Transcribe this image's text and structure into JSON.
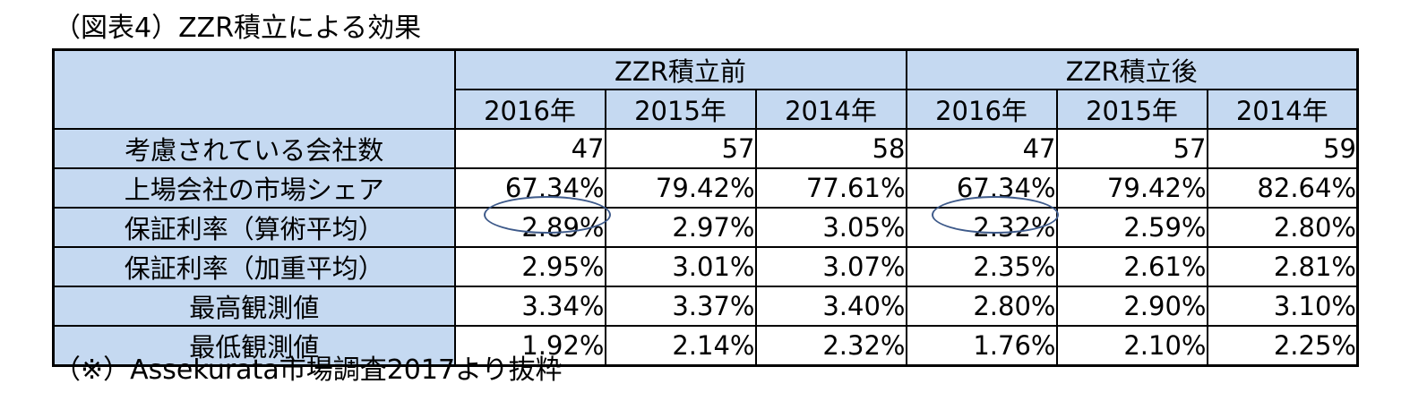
{
  "title": "（図表4）ZZR積立による効果",
  "table": {
    "group_headers": [
      "ZZR積立前",
      "ZZR積立後"
    ],
    "years": [
      "2016年",
      "2015年",
      "2014年",
      "2016年",
      "2015年",
      "2014年"
    ],
    "rows": [
      {
        "label": "考慮されている会社数",
        "values": [
          "47",
          "57",
          "58",
          "47",
          "57",
          "59"
        ]
      },
      {
        "label": "上場会社の市場シェア",
        "values": [
          "67.34%",
          "79.42%",
          "77.61%",
          "67.34%",
          "79.42%",
          "82.64%"
        ]
      },
      {
        "label": "保証利率（算術平均）",
        "values": [
          "2.89%",
          "2.97%",
          "3.05%",
          "2.32%",
          "2.59%",
          "2.80%"
        ]
      },
      {
        "label": "保証利率（加重平均）",
        "values": [
          "2.95%",
          "3.01%",
          "3.07%",
          "2.35%",
          "2.61%",
          "2.81%"
        ]
      },
      {
        "label": "最高観測値",
        "values": [
          "3.34%",
          "3.37%",
          "3.40%",
          "2.80%",
          "2.90%",
          "3.10%"
        ]
      },
      {
        "label": "最低観測値",
        "values": [
          "1.92%",
          "2.14%",
          "2.32%",
          "1.76%",
          "2.10%",
          "2.25%"
        ]
      }
    ]
  },
  "footnote": "（※）Assekurata市場調査2017より抜粋",
  "colors": {
    "header_fill": "#c5d9f1",
    "border": "#000000",
    "highlight_ellipse": "#3e5a8a"
  }
}
